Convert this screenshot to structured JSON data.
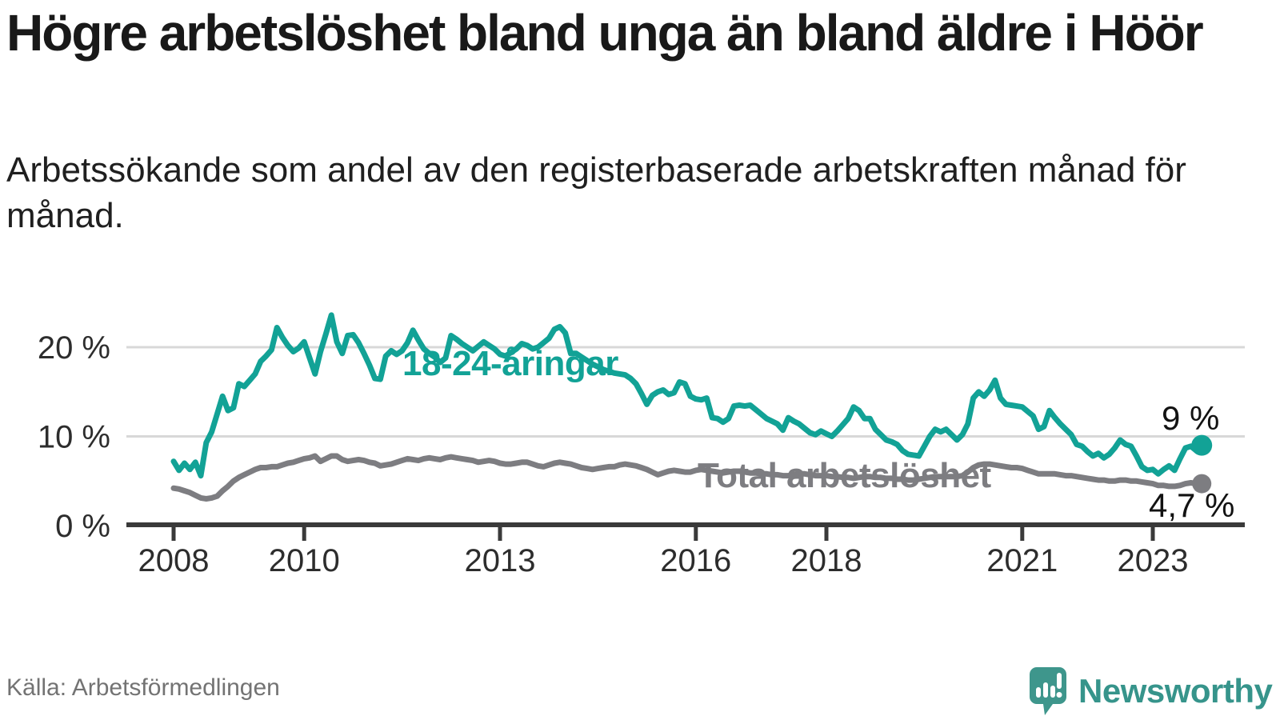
{
  "header": {
    "title": "Högre arbetslöshet bland unga än bland äldre i Höör",
    "subtitle": "Arbetssökande som andel av den registerbaserade arbetskraften månad för månad."
  },
  "footer": {
    "source": "Källa: Arbetsförmedlingen",
    "brand": "Newsworthy"
  },
  "colors": {
    "accent_teal": "#12a296",
    "series_gray": "#7d7d81",
    "grid": "#d8d8d8",
    "axis": "#3a3a3a",
    "tick_text": "#2d2d2d",
    "logo_teal": "#3e968c"
  },
  "chart_data": {
    "type": "line",
    "unit": "%",
    "x_start_month": "2008-01",
    "x_end_month": "2023-10",
    "x_step": "1 month",
    "ylim": [
      0,
      24
    ],
    "grid": "horizontal only",
    "legend_position": "inline labels on lines",
    "y_ticks": [
      {
        "label": "0 %",
        "value": 0
      },
      {
        "label": "10 %",
        "value": 10
      },
      {
        "label": "20 %",
        "value": 20
      }
    ],
    "x_ticks": [
      {
        "label": "2008",
        "year": 2008
      },
      {
        "label": "2010",
        "year": 2010
      },
      {
        "label": "2013",
        "year": 2013
      },
      {
        "label": "2016",
        "year": 2016
      },
      {
        "label": "2018",
        "year": 2018
      },
      {
        "label": "2021",
        "year": 2021
      },
      {
        "label": "2023",
        "year": 2023
      }
    ],
    "series": [
      {
        "name": "18-24-åringar",
        "color": "#12a296",
        "end_label": "9 %",
        "end_value": 9.0,
        "line_width": 7,
        "dot_radius": 13,
        "values": [
          7.2,
          6.2,
          7.0,
          6.3,
          7.1,
          5.6,
          9.3,
          10.5,
          12.5,
          14.5,
          12.9,
          13.2,
          15.9,
          15.6,
          16.3,
          17.0,
          18.4,
          19.0,
          19.7,
          22.2,
          21.1,
          20.2,
          19.5,
          19.9,
          20.6,
          18.8,
          17.0,
          19.5,
          21.5,
          23.6,
          20.6,
          19.3,
          21.3,
          21.4,
          20.5,
          19.3,
          18.0,
          16.5,
          16.4,
          19.0,
          19.6,
          19.2,
          19.6,
          20.5,
          21.9,
          20.8,
          19.8,
          19.3,
          18.9,
          18.3,
          18.8,
          21.3,
          20.9,
          20.4,
          20.0,
          19.6,
          20.1,
          20.6,
          20.2,
          19.8,
          19.2,
          19.0,
          19.4,
          19.8,
          20.4,
          20.2,
          19.8,
          20.0,
          20.5,
          21.0,
          22.0,
          22.3,
          21.6,
          19.3,
          19.3,
          18.9,
          18.5,
          18.1,
          17.8,
          17.5,
          17.3,
          17.1,
          17.0,
          16.9,
          16.5,
          15.9,
          14.8,
          13.6,
          14.6,
          15.0,
          15.2,
          14.7,
          14.9,
          16.1,
          15.9,
          14.5,
          14.2,
          14.1,
          14.3,
          12.1,
          12.0,
          11.6,
          12.0,
          13.4,
          13.5,
          13.4,
          13.5,
          13.0,
          12.5,
          12.0,
          11.7,
          11.4,
          10.7,
          12.1,
          11.7,
          11.4,
          10.9,
          10.4,
          10.2,
          10.6,
          10.3,
          10.0,
          10.6,
          11.3,
          12.0,
          13.3,
          12.9,
          12.0,
          12.0,
          10.8,
          10.2,
          9.6,
          9.4,
          9.1,
          8.4,
          8.0,
          7.9,
          7.8,
          8.9,
          10.0,
          10.8,
          10.5,
          10.8,
          10.2,
          9.6,
          10.2,
          11.4,
          14.3,
          15.0,
          14.5,
          15.2,
          16.3,
          14.3,
          13.6,
          13.5,
          13.4,
          13.3,
          12.8,
          12.3,
          10.8,
          11.1,
          12.9,
          12.1,
          11.4,
          10.8,
          10.2,
          9.1,
          8.9,
          8.3,
          7.8,
          8.1,
          7.6,
          8.0,
          8.7,
          9.6,
          9.1,
          8.9,
          7.8,
          6.6,
          6.2,
          6.3,
          5.8,
          6.3,
          6.7,
          6.2,
          7.5,
          8.7,
          8.9,
          8.4,
          9.0
        ]
      },
      {
        "name": "Total arbetslöshet",
        "color": "#7d7d81",
        "end_label": "4,7 %",
        "end_value": 4.7,
        "line_width": 7,
        "dot_radius": 12,
        "values": [
          4.2,
          4.1,
          3.9,
          3.7,
          3.4,
          3.1,
          3.0,
          3.1,
          3.3,
          3.9,
          4.4,
          5.0,
          5.4,
          5.7,
          6.0,
          6.3,
          6.5,
          6.5,
          6.6,
          6.6,
          6.8,
          7.0,
          7.1,
          7.3,
          7.5,
          7.6,
          7.8,
          7.2,
          7.5,
          7.8,
          7.8,
          7.4,
          7.2,
          7.3,
          7.4,
          7.3,
          7.1,
          7.0,
          6.7,
          6.8,
          6.9,
          7.1,
          7.3,
          7.5,
          7.4,
          7.3,
          7.5,
          7.6,
          7.5,
          7.4,
          7.6,
          7.7,
          7.6,
          7.5,
          7.4,
          7.3,
          7.1,
          7.2,
          7.3,
          7.2,
          7.0,
          6.9,
          6.9,
          7.0,
          7.1,
          7.1,
          6.9,
          6.7,
          6.6,
          6.8,
          7.0,
          7.1,
          7.0,
          6.9,
          6.7,
          6.5,
          6.4,
          6.3,
          6.4,
          6.5,
          6.6,
          6.6,
          6.8,
          6.9,
          6.8,
          6.7,
          6.5,
          6.3,
          6.0,
          5.7,
          5.9,
          6.1,
          6.2,
          6.1,
          6.0,
          6.0,
          6.2,
          6.3,
          6.2,
          6.1,
          6.0,
          5.9,
          6.0,
          6.1,
          6.1,
          6.0,
          5.9,
          5.9,
          5.8,
          5.8,
          5.7,
          5.7,
          5.6,
          5.6,
          5.7,
          5.8,
          5.8,
          5.7,
          5.6,
          5.6,
          5.6,
          5.5,
          5.5,
          5.4,
          5.4,
          5.3,
          5.4,
          5.5,
          5.5,
          5.4,
          5.4,
          5.3,
          5.3,
          5.2,
          5.2,
          5.1,
          5.1,
          5.2,
          5.3,
          5.4,
          5.5,
          5.5,
          5.5,
          5.5,
          5.5,
          5.6,
          6.0,
          6.5,
          6.8,
          6.9,
          6.9,
          6.8,
          6.7,
          6.6,
          6.5,
          6.5,
          6.4,
          6.2,
          6.0,
          5.8,
          5.8,
          5.8,
          5.8,
          5.7,
          5.6,
          5.6,
          5.5,
          5.4,
          5.3,
          5.2,
          5.1,
          5.1,
          5.0,
          5.0,
          5.1,
          5.1,
          5.0,
          5.0,
          4.9,
          4.8,
          4.7,
          4.5,
          4.5,
          4.4,
          4.4,
          4.5,
          4.7,
          4.8,
          4.7,
          4.7
        ]
      }
    ]
  }
}
